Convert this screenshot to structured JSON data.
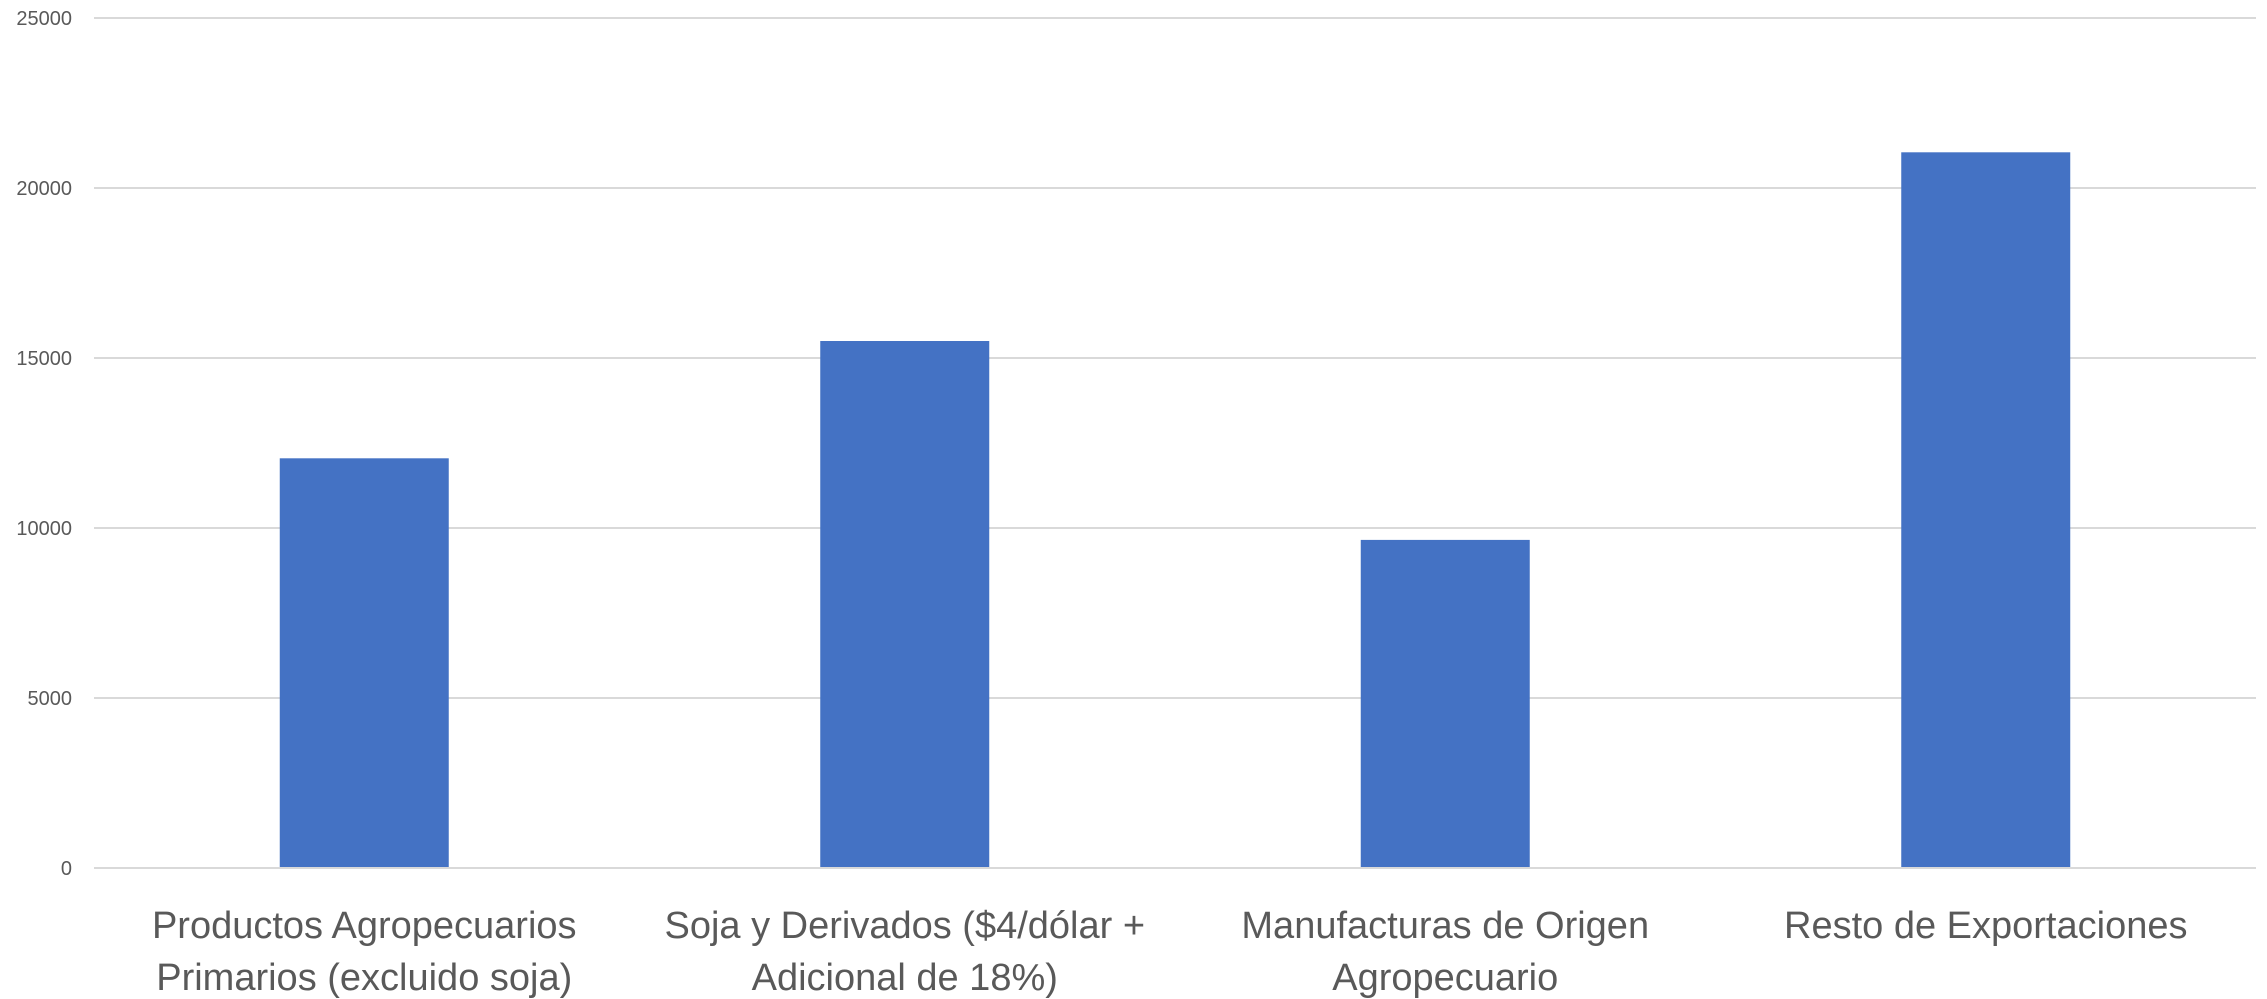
{
  "chart_data": {
    "type": "bar",
    "title": "",
    "xlabel": "",
    "ylabel": "",
    "categories": [
      [
        "Productos Agropecuarios",
        "Primarios (excluido soja)"
      ],
      [
        "Soja y Derivados ($4/dólar +",
        "Adicional de 18%)"
      ],
      [
        "Manufacturas de Origen",
        "Agropecuario"
      ],
      [
        "Resto de Exportaciones"
      ]
    ],
    "values": [
      12050,
      15500,
      9650,
      21050
    ],
    "ylim": [
      0,
      25000
    ],
    "yticks": [
      0,
      5000,
      10000,
      15000,
      20000,
      25000
    ],
    "grid": true,
    "legend": "none",
    "colors": {
      "bar": "#4472C4",
      "grid": "#d9d9d9",
      "text": "#595959"
    }
  }
}
